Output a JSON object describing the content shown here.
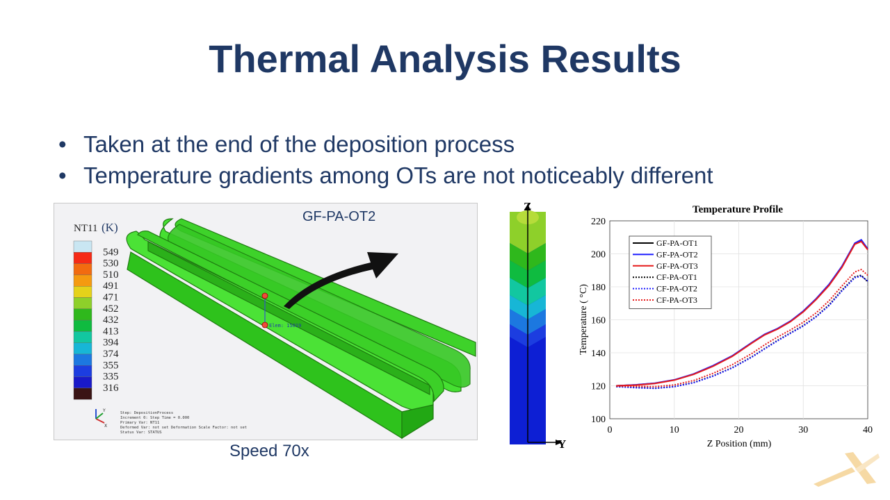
{
  "slide": {
    "title": "Thermal Analysis Results",
    "bullets": [
      "Taken at the end of the deposition process",
      "Temperature gradients among OTs are not noticeably different"
    ],
    "caption": "Speed 70x"
  },
  "simulation": {
    "label": "GF-PA-OT2",
    "legend_title": "NT11",
    "legend_unit": "(K)",
    "legend_values": [
      "549",
      "530",
      "510",
      "491",
      "471",
      "452",
      "432",
      "413",
      "394",
      "374",
      "355",
      "335",
      "316"
    ],
    "legend_colors": [
      "#c9e6f2",
      "#f52a16",
      "#f26b10",
      "#f59a10",
      "#e5d21a",
      "#8ed02a",
      "#2fb81c",
      "#0fbb40",
      "#12c7a0",
      "#17b6d6",
      "#1c78e0",
      "#1c3de0",
      "#1919c8",
      "#3a1414"
    ],
    "probe_label": "Elem: 15019",
    "info_lines": [
      "Step: DepositionProcess",
      "Increment      0: Step Time =      0.000",
      "Primary Var: NT11",
      "Deformed Var: not set   Deformation Scale Factor: not set",
      "Status Var: STATUS"
    ],
    "triad": {
      "y": "Y",
      "x": "X"
    }
  },
  "column": {
    "z_label": "Z",
    "y_label": "Y"
  },
  "chart_data": {
    "type": "line",
    "title": "Temperature Profile",
    "xlabel": "Z Position (mm)",
    "ylabel": "Temperature ( °C)",
    "xlim": [
      0,
      40
    ],
    "ylim": [
      100,
      220
    ],
    "xticks": [
      0,
      10,
      20,
      30,
      40
    ],
    "yticks": [
      100,
      120,
      140,
      160,
      180,
      200,
      220
    ],
    "grid": true,
    "legend_position": "top-left",
    "x": [
      1,
      4,
      7,
      10,
      13,
      16,
      19,
      22,
      24,
      26,
      28,
      30,
      32,
      34,
      36,
      38,
      39,
      40
    ],
    "series": [
      {
        "name": "GF-PA-OT1",
        "color": "#000000",
        "dash": false,
        "values": [
          120,
          120.5,
          121.5,
          123.5,
          127,
          132,
          138,
          146,
          151,
          154.5,
          159,
          165,
          172.5,
          181,
          192,
          206,
          208,
          203
        ]
      },
      {
        "name": "GF-PA-OT2",
        "color": "#1a1aff",
        "dash": false,
        "values": [
          120,
          120.6,
          121.6,
          123.6,
          127.2,
          132.2,
          138.2,
          146.2,
          151.2,
          154.7,
          159.2,
          165.3,
          172.8,
          181.5,
          192.5,
          206.5,
          208.5,
          203
        ]
      },
      {
        "name": "GF-PA-OT3",
        "color": "#e61919",
        "dash": false,
        "values": [
          120,
          120.4,
          121.4,
          123.4,
          126.9,
          131.8,
          137.8,
          145.8,
          150.8,
          154.3,
          158.8,
          164.8,
          172.3,
          180.8,
          191.8,
          205.8,
          207.5,
          202.5
        ]
      },
      {
        "name": "CF-PA-OT1",
        "color": "#000000",
        "dash": true,
        "values": [
          119.5,
          119,
          118.5,
          119.5,
          122,
          126,
          131,
          137.5,
          142.5,
          147.5,
          152,
          156.5,
          162,
          169,
          178,
          186,
          187,
          183
        ]
      },
      {
        "name": "CF-PA-OT2",
        "color": "#1a1aff",
        "dash": true,
        "values": [
          119.5,
          118.8,
          118.4,
          119.4,
          121.8,
          125.8,
          130.8,
          137.3,
          142.3,
          147.2,
          151.8,
          156.2,
          161.8,
          168.6,
          177.5,
          185.5,
          186.5,
          183.5
        ]
      },
      {
        "name": "CF-PA-OT3",
        "color": "#e61919",
        "dash": true,
        "values": [
          119.8,
          119.7,
          119.5,
          120.5,
          123.2,
          127.5,
          132.8,
          139.5,
          144.8,
          149.5,
          153.8,
          158.5,
          164.2,
          171.5,
          180.5,
          189,
          190.5,
          187
        ]
      }
    ]
  }
}
